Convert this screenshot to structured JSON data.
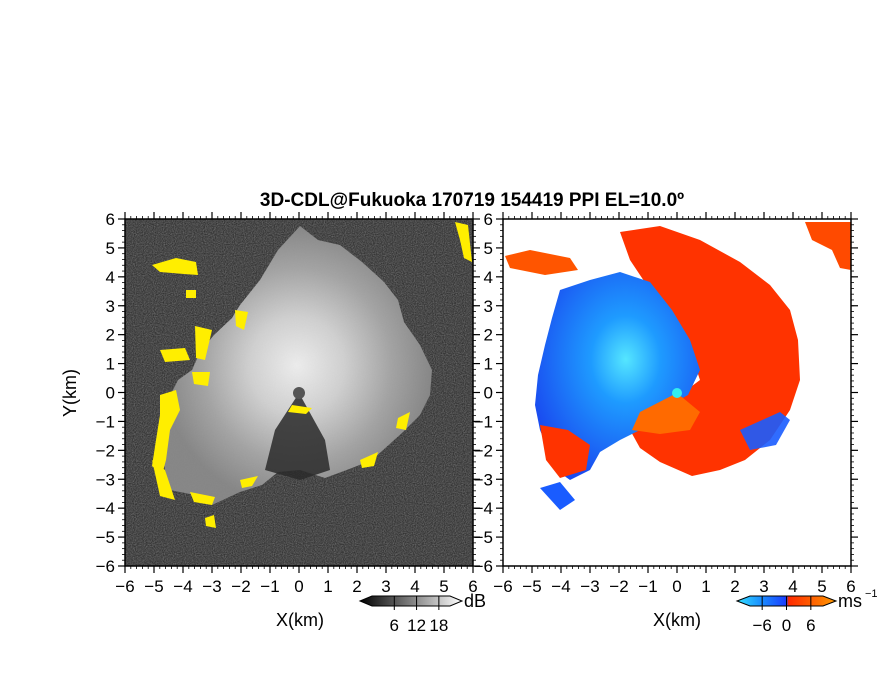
{
  "title": "3D-CDL@Fukuoka 170719 154419 PPI EL=10.0º",
  "colors": {
    "echo_yellow": "#ffee00",
    "velocity_negative": "#1a5cff",
    "velocity_negative_light": "#33ddff",
    "velocity_positive": "#ff3300",
    "velocity_positive_light": "#ff8800",
    "noise_dark": "#1e1e1e"
  },
  "chart_data": [
    {
      "type": "heatmap",
      "panel": "left",
      "variable": "SNR",
      "xlabel": "X(km)",
      "ylabel": "Y(km)",
      "xlim": [
        -6,
        6
      ],
      "ylim": [
        -6,
        6
      ],
      "xticks": [
        "−6",
        "−5",
        "−4",
        "−3",
        "−2",
        "−1",
        "0",
        "1",
        "2",
        "3",
        "4",
        "5",
        "6"
      ],
      "yticks": [
        "6",
        "5",
        "4",
        "3",
        "2",
        "1",
        "0",
        "−1",
        "−2",
        "−3",
        "−4",
        "−5",
        "−6"
      ],
      "colorbar": {
        "unit": "dB",
        "ticks": [
          "6",
          "12",
          "18"
        ],
        "tick_values": [
          6,
          12,
          18
        ],
        "range": [
          0,
          21
        ]
      }
    },
    {
      "type": "heatmap",
      "panel": "right",
      "variable": "Doppler velocity",
      "xlabel": "X(km)",
      "ylabel": "",
      "xlim": [
        -6,
        6
      ],
      "ylim": [
        -6,
        6
      ],
      "xticks": [
        "−6",
        "−5",
        "−4",
        "−3",
        "−2",
        "−1",
        "0",
        "1",
        "2",
        "3",
        "4",
        "5",
        "6"
      ],
      "yticks": [
        "6",
        "5",
        "4",
        "3",
        "2",
        "1",
        "0",
        "−1",
        "−2",
        "−3",
        "−4",
        "−5",
        "−6"
      ],
      "colorbar": {
        "unit": "ms",
        "unit_exponent": "−1",
        "ticks": [
          "−6",
          "0",
          "6"
        ],
        "tick_values": [
          -6,
          0,
          6
        ],
        "range": [
          -9,
          9
        ]
      }
    }
  ]
}
